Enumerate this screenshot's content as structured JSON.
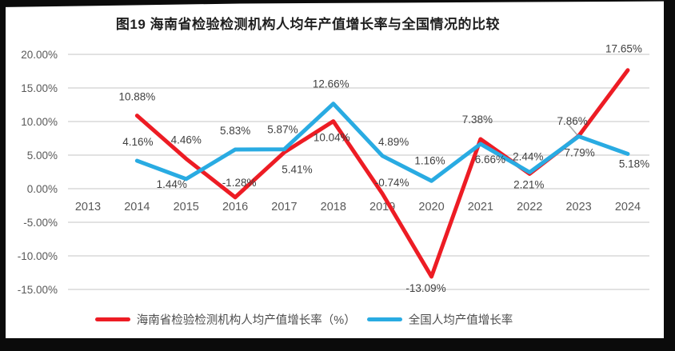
{
  "chart_data": {
    "type": "line",
    "title": "图19  海南省检验检测机构人均年产值增长率与全国情况的比较",
    "categories": [
      "2013",
      "2014",
      "2015",
      "2016",
      "2017",
      "2018",
      "2019",
      "2020",
      "2021",
      "2022",
      "2023",
      "2024"
    ],
    "y_ticks": [
      "20.00%",
      "15.00%",
      "10.00%",
      "5.00%",
      "0.00%",
      "-5.00%",
      "-10.00%",
      "-15.00%"
    ],
    "y_tick_values": [
      20,
      15,
      10,
      5,
      0,
      -5,
      -10,
      -15
    ],
    "ylim": [
      -15,
      20
    ],
    "grid": true,
    "legend_position": "bottom",
    "grid_color": "#d9d9d9",
    "axis_color": "#595959",
    "label_color": "#404040",
    "series": [
      {
        "name": "海南省检验检测机构人均产值增长率（%）",
        "color": "#ed1c24",
        "values": [
          null,
          10.88,
          4.46,
          -1.28,
          5.41,
          10.04,
          -0.74,
          -13.09,
          7.38,
          2.21,
          7.86,
          17.65
        ],
        "label_offsets": [
          null,
          [
            0,
            -24
          ],
          [
            0,
            -24
          ],
          [
            5,
            -19
          ],
          [
            16,
            21
          ],
          [
            -2,
            20
          ],
          [
            12,
            -14
          ],
          [
            -7,
            14
          ],
          [
            -4,
            -25
          ],
          [
            -1,
            13
          ],
          [
            -8,
            -19
          ],
          [
            -5,
            -27
          ]
        ]
      },
      {
        "name": "全国人均产值增长率",
        "color": "#29abe2",
        "values": [
          null,
          4.16,
          1.44,
          5.83,
          5.87,
          12.66,
          4.89,
          1.16,
          6.66,
          2.44,
          7.79,
          5.18
        ],
        "label_offsets": [
          null,
          [
            1,
            -24
          ],
          [
            -18,
            6
          ],
          [
            0,
            -24
          ],
          [
            -2,
            -25
          ],
          [
            -3,
            -25
          ],
          [
            14,
            -18
          ],
          [
            -2,
            -26
          ],
          [
            12,
            19
          ],
          [
            -2,
            -20
          ],
          [
            1,
            20
          ],
          [
            8,
            12
          ]
        ]
      }
    ]
  }
}
